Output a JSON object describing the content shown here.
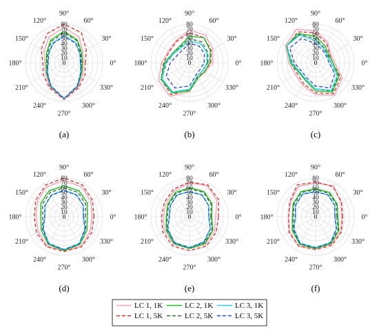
{
  "chart_data": {
    "type": "polar-line",
    "panels": [
      {
        "label": "(a)",
        "angles": [
          0,
          30,
          60,
          90,
          120,
          150,
          180,
          210,
          240,
          270,
          300,
          330
        ],
        "series": [
          {
            "name": "LC 1, 1K",
            "values": [
              40,
              45,
              62,
              73,
              62,
              48,
              40,
              45,
              58,
              74,
              58,
              45
            ]
          },
          {
            "name": "LC 1, 5K",
            "values": [
              44,
              53,
              72,
              80,
              70,
              55,
              44,
              50,
              60,
              76,
              60,
              50
            ]
          },
          {
            "name": "LC 2, 1K",
            "values": [
              38,
              42,
              55,
              65,
              55,
              42,
              37,
              42,
              56,
              74,
              56,
              42
            ]
          },
          {
            "name": "LC 2, 5K",
            "values": [
              36,
              40,
              53,
              62,
              52,
              40,
              35,
              41,
              56,
              74,
              56,
              41
            ]
          },
          {
            "name": "LC 3, 1K",
            "values": [
              34,
              38,
              48,
              56,
              47,
              37,
              33,
              40,
              55,
              74,
              55,
              40
            ]
          },
          {
            "name": "LC 3, 5K",
            "values": [
              34,
              38,
              47,
              55,
              46,
              37,
              33,
              40,
              55,
              74,
              55,
              40
            ]
          }
        ]
      },
      {
        "label": "(b)",
        "angles": [
          0,
          30,
          60,
          90,
          120,
          150,
          180,
          210,
          240,
          270,
          300,
          330
        ],
        "series": [
          {
            "name": "LC 1, 1K",
            "values": [
              48,
              56,
              66,
              68,
              54,
              50,
              58,
              74,
              80,
              60,
              36,
              38
            ]
          },
          {
            "name": "LC 1, 5K",
            "values": [
              44,
              52,
              60,
              62,
              52,
              48,
              54,
              68,
              76,
              56,
              34,
              36
            ]
          },
          {
            "name": "LC 2, 1K",
            "values": [
              42,
              50,
              60,
              55,
              40,
              40,
              52,
              68,
              72,
              58,
              36,
              36
            ]
          },
          {
            "name": "LC 2, 5K",
            "values": [
              38,
              44,
              50,
              50,
              38,
              38,
              48,
              66,
              70,
              55,
              32,
              32
            ]
          },
          {
            "name": "LC 3, 1K",
            "values": [
              36,
              42,
              46,
              45,
              36,
              38,
              50,
              66,
              70,
              55,
              32,
              32
            ]
          },
          {
            "name": "LC 3, 5K",
            "values": [
              30,
              36,
              40,
              40,
              30,
              30,
              40,
              56,
              60,
              48,
              28,
              26
            ]
          }
        ]
      },
      {
        "label": "(c)",
        "angles": [
          0,
          30,
          60,
          90,
          120,
          150,
          180,
          210,
          240,
          270,
          300,
          330
        ],
        "series": [
          {
            "name": "LC 1, 1K",
            "values": [
              40,
              36,
              50,
              66,
              80,
              72,
              56,
              48,
              54,
              66,
              78,
              64
            ]
          },
          {
            "name": "LC 1, 5K",
            "values": [
              36,
              34,
              46,
              62,
              74,
              68,
              52,
              44,
              50,
              62,
              74,
              60
            ]
          },
          {
            "name": "LC 2, 1K",
            "values": [
              36,
              32,
              40,
              55,
              70,
              70,
              52,
              40,
              42,
              58,
              70,
              56
            ]
          },
          {
            "name": "LC 2, 5K",
            "values": [
              32,
              30,
              36,
              50,
              68,
              70,
              48,
              38,
              40,
              54,
              68,
              54
            ]
          },
          {
            "name": "LC 3, 1K",
            "values": [
              32,
              28,
              34,
              46,
              66,
              70,
              50,
              38,
              40,
              54,
              66,
              52
            ]
          },
          {
            "name": "LC 3, 5K",
            "values": [
              28,
              26,
              30,
              40,
              58,
              62,
              44,
              34,
              36,
              48,
              60,
              46
            ]
          }
        ]
      },
      {
        "label": "(d)",
        "angles": [
          0,
          30,
          60,
          90,
          120,
          150,
          180,
          210,
          240,
          270,
          300,
          330
        ],
        "series": [
          {
            "name": "LC 1, 1K",
            "values": [
              58,
              64,
              72,
              75,
              72,
              64,
              58,
              62,
              70,
              70,
              70,
              62
            ]
          },
          {
            "name": "LC 1, 5K",
            "values": [
              62,
              68,
              76,
              80,
              76,
              68,
              62,
              66,
              72,
              72,
              72,
              66
            ]
          },
          {
            "name": "LC 2, 1K",
            "values": [
              48,
              56,
              62,
              64,
              62,
              56,
              48,
              55,
              66,
              70,
              66,
              55
            ]
          },
          {
            "name": "LC 2, 5K",
            "values": [
              44,
              52,
              58,
              60,
              58,
              52,
              44,
              52,
              64,
              68,
              64,
              52
            ]
          },
          {
            "name": "LC 3, 1K",
            "values": [
              40,
              46,
              52,
              55,
              52,
              46,
              40,
              50,
              64,
              68,
              64,
              50
            ]
          },
          {
            "name": "LC 3, 5K",
            "values": [
              40,
              46,
              52,
              54,
              52,
              46,
              40,
              50,
              64,
              68,
              64,
              50
            ]
          }
        ]
      },
      {
        "label": "(e)",
        "angles": [
          0,
          30,
          60,
          90,
          120,
          150,
          180,
          210,
          240,
          270,
          300,
          330
        ],
        "series": [
          {
            "name": "LC 1, 1K",
            "values": [
              54,
              66,
              74,
              70,
              62,
              56,
              54,
              60,
              66,
              66,
              66,
              60
            ]
          },
          {
            "name": "LC 1, 5K",
            "values": [
              60,
              70,
              76,
              72,
              66,
              60,
              58,
              64,
              70,
              70,
              70,
              64
            ]
          },
          {
            "name": "LC 2, 1K",
            "values": [
              46,
              54,
              60,
              60,
              58,
              52,
              48,
              56,
              64,
              66,
              64,
              56
            ]
          },
          {
            "name": "LC 2, 5K",
            "values": [
              44,
              52,
              58,
              58,
              56,
              50,
              46,
              54,
              62,
              64,
              62,
              54
            ]
          },
          {
            "name": "LC 3, 1K",
            "values": [
              40,
              46,
              52,
              52,
              52,
              46,
              42,
              52,
              62,
              64,
              60,
              50
            ]
          },
          {
            "name": "LC 3, 5K",
            "values": [
              40,
              46,
              52,
              52,
              52,
              46,
              42,
              52,
              62,
              64,
              60,
              50
            ]
          }
        ]
      },
      {
        "label": "(f)",
        "angles": [
          0,
          30,
          60,
          90,
          120,
          150,
          180,
          210,
          240,
          270,
          300,
          330
        ],
        "series": [
          {
            "name": "LC 1, 1K",
            "values": [
              54,
              60,
              74,
              70,
              72,
              60,
              56,
              62,
              70,
              66,
              66,
              60
            ]
          },
          {
            "name": "LC 1, 5K",
            "values": [
              56,
              62,
              72,
              72,
              76,
              62,
              56,
              64,
              70,
              68,
              68,
              62
            ]
          },
          {
            "name": "LC 2, 1K",
            "values": [
              46,
              52,
              58,
              58,
              60,
              54,
              48,
              56,
              66,
              66,
              64,
              56
            ]
          },
          {
            "name": "LC 2, 5K",
            "values": [
              44,
              50,
              56,
              56,
              58,
              52,
              46,
              54,
              64,
              64,
              62,
              54
            ]
          },
          {
            "name": "LC 3, 1K",
            "values": [
              40,
              46,
              52,
              52,
              54,
              48,
              42,
              52,
              64,
              64,
              62,
              50
            ]
          },
          {
            "name": "LC 3, 5K",
            "values": [
              40,
              46,
              52,
              52,
              54,
              48,
              42,
              52,
              64,
              64,
              62,
              50
            ]
          }
        ]
      }
    ],
    "angle_ticks": [
      "0°",
      "30°",
      "60°",
      "90°",
      "120°",
      "150°",
      "180°",
      "210°",
      "240°",
      "270°",
      "300°",
      "330°"
    ],
    "radial_ticks": [
      0,
      10,
      20,
      30,
      40,
      50,
      60,
      70,
      80
    ],
    "rlim": [
      0,
      80
    ],
    "grid": true,
    "legend_position": "bottom-center",
    "legend": [
      {
        "name": "LC 1, 1K",
        "color": "#f4a6b4",
        "style": "solid"
      },
      {
        "name": "LC 2, 1K",
        "color": "#22bb22",
        "style": "solid"
      },
      {
        "name": "LC 3, 1K",
        "color": "#22d3e8",
        "style": "solid"
      },
      {
        "name": "LC 1, 5K",
        "color": "#e32b2b",
        "style": "dashed"
      },
      {
        "name": "LC 2, 5K",
        "color": "#2f6b2f",
        "style": "dashed"
      },
      {
        "name": "LC 3, 5K",
        "color": "#2146d8",
        "style": "dashed"
      }
    ]
  }
}
